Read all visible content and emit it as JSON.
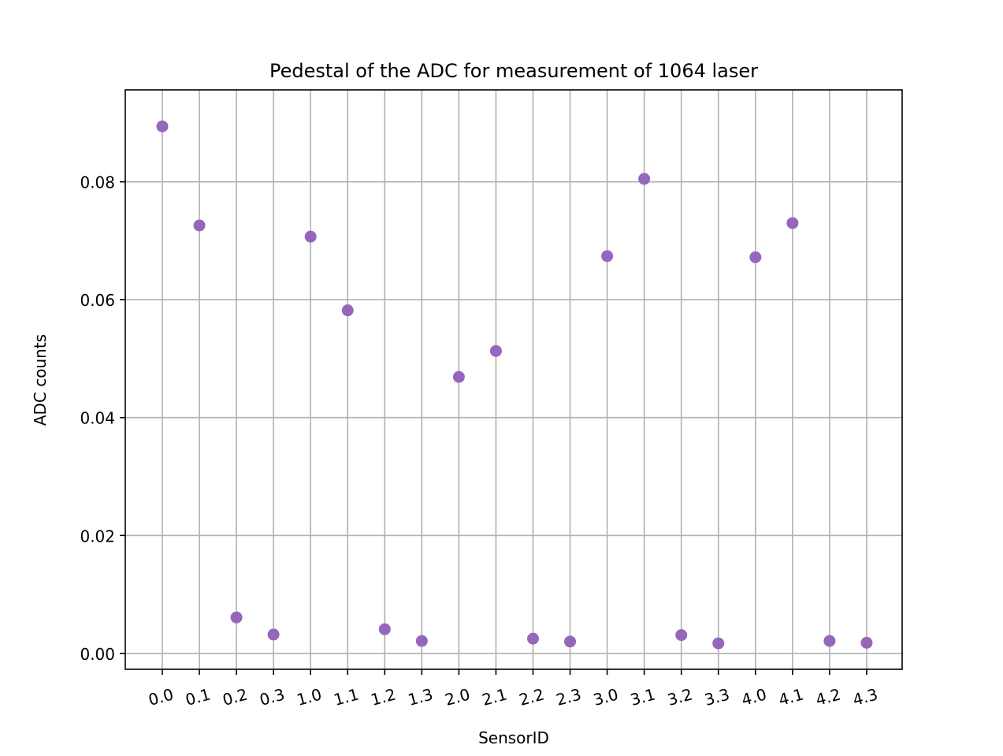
{
  "chart_data": {
    "type": "scatter",
    "title": "Pedestal of the ADC for measurement of 1064 laser",
    "xlabel": "SensorID",
    "ylabel": "ADC counts",
    "categories": [
      "0.0",
      "0.1",
      "0.2",
      "0.3",
      "1.0",
      "1.1",
      "1.2",
      "1.3",
      "2.0",
      "2.1",
      "2.2",
      "2.3",
      "3.0",
      "3.1",
      "3.2",
      "3.3",
      "4.0",
      "4.1",
      "4.2",
      "4.3"
    ],
    "series": [
      {
        "values": [
          0.0894,
          0.0726,
          0.0061,
          0.0032,
          0.0707,
          0.0582,
          0.0041,
          0.0021,
          0.0469,
          0.0513,
          0.0025,
          0.002,
          0.0674,
          0.0805,
          0.0031,
          0.0017,
          0.0672,
          0.073,
          0.0021,
          0.0018
        ],
        "error": [
          0.0004,
          0.0004,
          0.0002,
          0.0002,
          0.0004,
          0.0004,
          0.0002,
          0.0002,
          0.0004,
          0.0004,
          0.0002,
          0.0002,
          0.0004,
          0.0009,
          0.0002,
          0.0002,
          0.0004,
          0.0004,
          0.0002,
          0.0002
        ],
        "color": "#9467bd"
      }
    ],
    "yticks": [
      "0.00",
      "0.02",
      "0.04",
      "0.06",
      "0.08"
    ],
    "ytick_values": [
      0,
      0.02,
      0.04,
      0.06,
      0.08
    ],
    "ylim": [
      -0.0027,
      0.0956
    ],
    "grid": true,
    "xtick_rotation": "rotated"
  }
}
